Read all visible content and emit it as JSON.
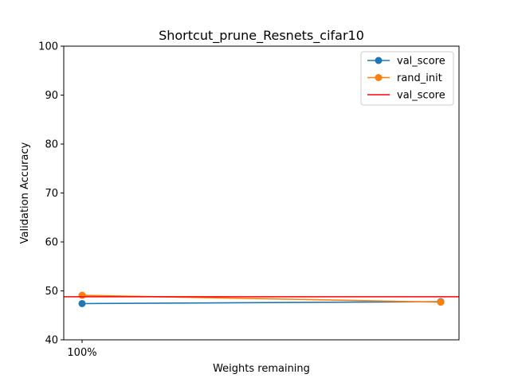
{
  "chart_data": {
    "type": "line",
    "title": "Shortcut_prune_Resnets_cifar10",
    "xlabel": "Weights remaining",
    "ylabel": "Validation Accuracy",
    "xtick_labels": [
      "100%"
    ],
    "ylim": [
      40,
      100
    ],
    "yticks": [
      40,
      50,
      60,
      70,
      80,
      90,
      100
    ],
    "x": [
      0,
      1
    ],
    "grid": false,
    "legend_position": "top-right",
    "series": [
      {
        "name": "val_score",
        "kind": "line-marker",
        "color": "#1f77b4",
        "values": [
          47.4,
          47.8
        ]
      },
      {
        "name": "rand_init",
        "kind": "line-marker",
        "color": "#ff7f0e",
        "values": [
          49.1,
          47.7
        ]
      },
      {
        "name": "val_score",
        "kind": "hline",
        "color": "#ff0000",
        "value": 48.8
      }
    ]
  }
}
